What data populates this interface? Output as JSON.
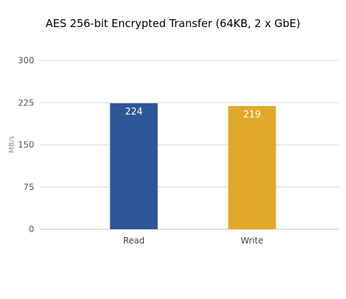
{
  "chart_data": {
    "type": "bar",
    "title": "AES 256-bit Encrypted Transfer (64KB, 2 x GbE)",
    "xlabel": "",
    "ylabel": "MB/s",
    "ylim": [
      0,
      300
    ],
    "yticks": [
      0,
      75,
      150,
      225,
      300
    ],
    "grid": true,
    "categories": [
      "Read",
      "Write"
    ],
    "values": [
      224,
      219
    ],
    "bar_colors": [
      "#2e5597",
      "#e0a829"
    ],
    "data_labels": [
      "224",
      "219"
    ]
  },
  "colors": {
    "grid": "#d9d9d9",
    "axis": "#bfbfbf",
    "tick_text": "#595959",
    "data_label": "#ffffff"
  }
}
